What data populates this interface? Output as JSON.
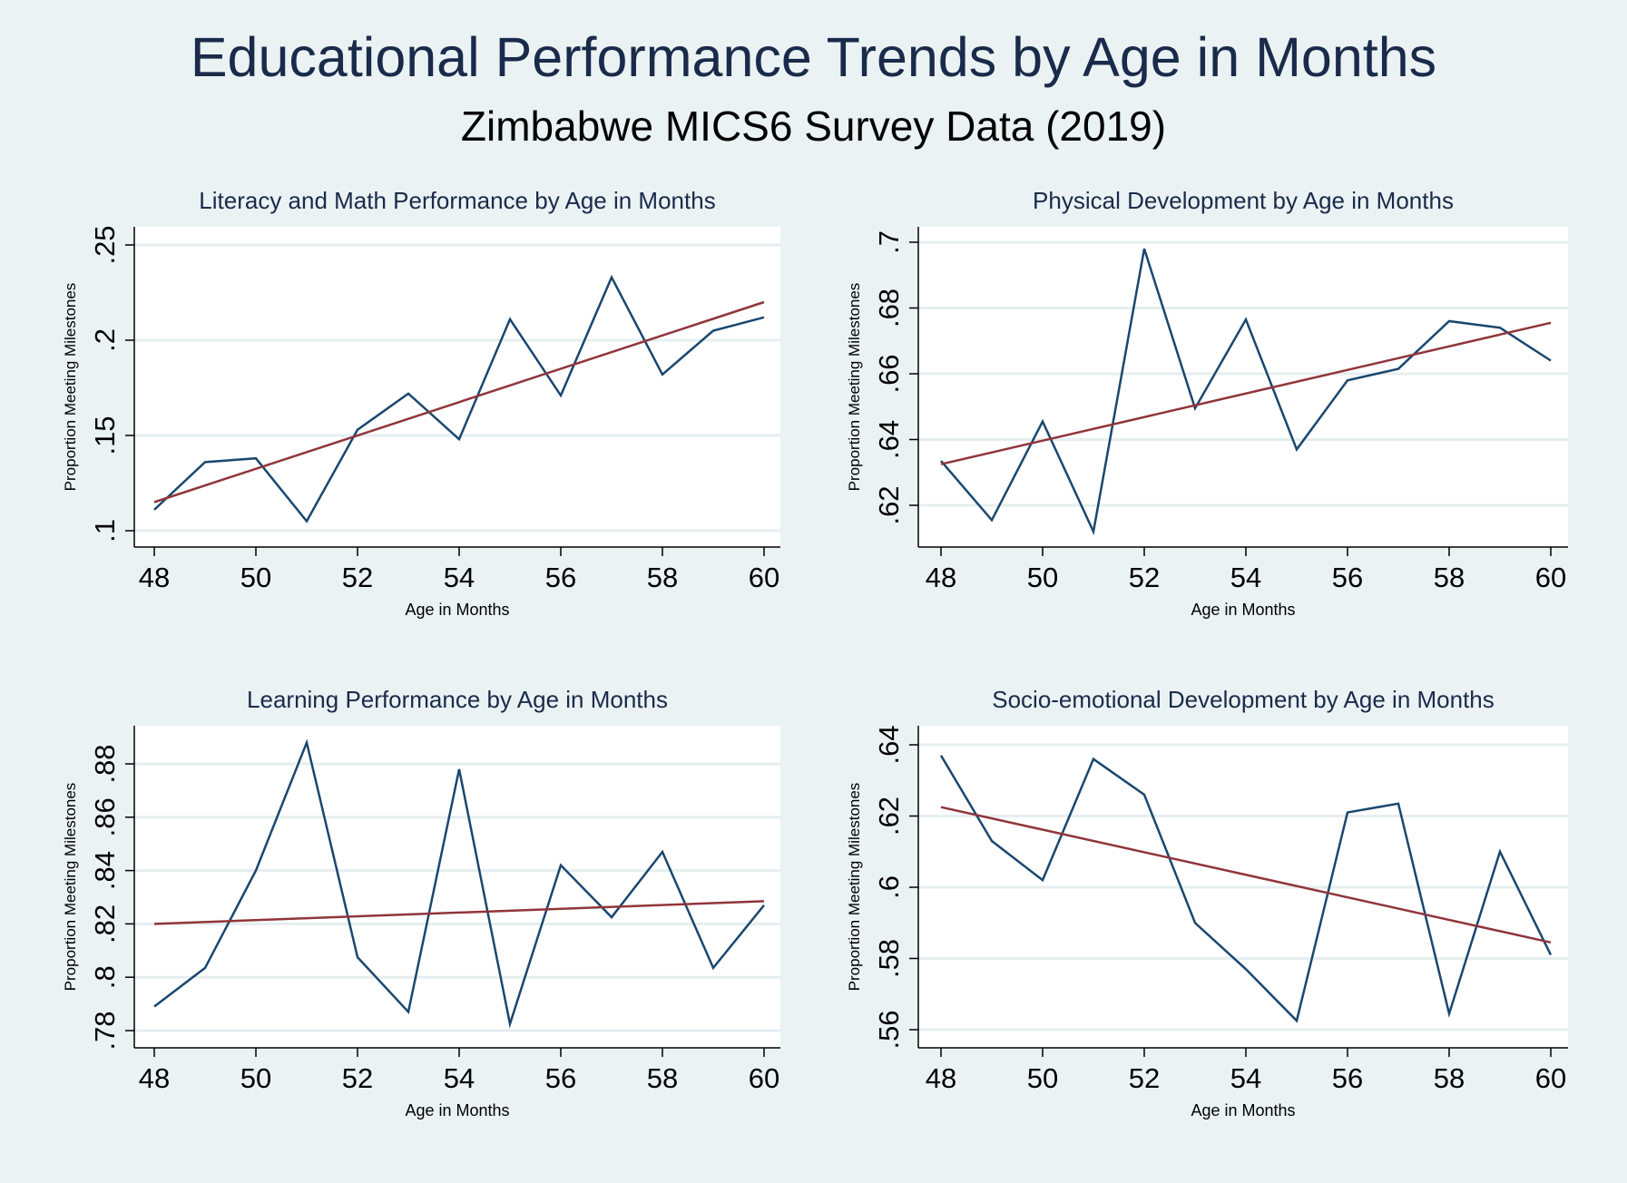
{
  "figure": {
    "title": "Educational Performance Trends by Age in Months",
    "subtitle": "Zimbabwe MICS6 Survey Data (2019)"
  },
  "colors": {
    "background": "#eaf2f3",
    "plot_background": "#ffffff",
    "gridline": "#e6eef0",
    "data_line": "#1a476f",
    "fit_line": "#90353b",
    "title_text": "#1a2a4a"
  },
  "chart_data": [
    {
      "type": "line",
      "title": "Literacy and Math Performance by Age in Months",
      "xlabel": "Age in Months",
      "ylabel": "Proportion Meeting Milestones",
      "x": [
        48,
        49,
        50,
        51,
        52,
        53,
        54,
        55,
        56,
        57,
        58,
        59,
        60
      ],
      "xlim": [
        48,
        60
      ],
      "xticks": [
        48,
        50,
        52,
        54,
        56,
        58,
        60
      ],
      "xtick_labels": [
        "48",
        "50",
        "52",
        "54",
        "56",
        "58",
        "60"
      ],
      "ylim": [
        0.1,
        0.25
      ],
      "yticks": [
        0.1,
        0.15,
        0.2,
        0.25
      ],
      "ytick_labels": [
        ".1",
        ".15",
        ".2",
        ".25"
      ],
      "grid": true,
      "series": [
        {
          "values": [
            0.111,
            0.136,
            0.138,
            0.105,
            0.153,
            0.172,
            0.148,
            0.211,
            0.171,
            0.233,
            0.182,
            0.205,
            0.212
          ]
        }
      ],
      "fit_line": {
        "x": [
          48,
          60
        ],
        "y": [
          0.115,
          0.22
        ]
      }
    },
    {
      "type": "line",
      "title": "Physical Development by Age in Months",
      "xlabel": "Age in Months",
      "ylabel": "Proportion Meeting Milestones",
      "x": [
        48,
        49,
        50,
        51,
        52,
        53,
        54,
        55,
        56,
        57,
        58,
        59,
        60
      ],
      "xlim": [
        48,
        60
      ],
      "xticks": [
        48,
        50,
        52,
        54,
        56,
        58,
        60
      ],
      "xtick_labels": [
        "48",
        "50",
        "52",
        "54",
        "56",
        "58",
        "60"
      ],
      "ylim": [
        0.62,
        0.7
      ],
      "yticks": [
        0.62,
        0.64,
        0.66,
        0.68,
        0.7
      ],
      "ytick_labels": [
        ".62",
        ".64",
        ".66",
        ".68",
        ".7"
      ],
      "grid": true,
      "series": [
        {
          "values": [
            0.6335,
            0.6155,
            0.6455,
            0.612,
            0.698,
            0.6495,
            0.6765,
            0.637,
            0.658,
            0.6615,
            0.676,
            0.674,
            0.664
          ]
        }
      ],
      "fit_line": {
        "x": [
          48,
          60
        ],
        "y": [
          0.6325,
          0.6755
        ]
      }
    },
    {
      "type": "line",
      "title": "Learning Performance by Age in Months",
      "xlabel": "Age in Months",
      "ylabel": "Proportion Meeting Milestones",
      "x": [
        48,
        49,
        50,
        51,
        52,
        53,
        54,
        55,
        56,
        57,
        58,
        59,
        60
      ],
      "xlim": [
        48,
        60
      ],
      "xticks": [
        48,
        50,
        52,
        54,
        56,
        58,
        60
      ],
      "xtick_labels": [
        "48",
        "50",
        "52",
        "54",
        "56",
        "58",
        "60"
      ],
      "ylim": [
        0.78,
        0.88
      ],
      "yticks": [
        0.78,
        0.8,
        0.82,
        0.84,
        0.86,
        0.88
      ],
      "ytick_labels": [
        ".78",
        ".8",
        ".82",
        ".84",
        ".86",
        ".88"
      ],
      "grid": true,
      "series": [
        {
          "values": [
            0.789,
            0.8035,
            0.84,
            0.888,
            0.8075,
            0.787,
            0.878,
            0.7825,
            0.842,
            0.8225,
            0.847,
            0.8035,
            0.827
          ]
        }
      ],
      "fit_line": {
        "x": [
          48,
          60
        ],
        "y": [
          0.82,
          0.8285
        ]
      }
    },
    {
      "type": "line",
      "title": "Socio-emotional Development by Age in Months",
      "xlabel": "Age in Months",
      "ylabel": "Proportion Meeting Milestones",
      "x": [
        48,
        49,
        50,
        51,
        52,
        53,
        54,
        55,
        56,
        57,
        58,
        59,
        60
      ],
      "xlim": [
        48,
        60
      ],
      "xticks": [
        48,
        50,
        52,
        54,
        56,
        58,
        60
      ],
      "xtick_labels": [
        "48",
        "50",
        "52",
        "54",
        "56",
        "58",
        "60"
      ],
      "ylim": [
        0.56,
        0.64
      ],
      "yticks": [
        0.56,
        0.58,
        0.6,
        0.62,
        0.64
      ],
      "ytick_labels": [
        ".56",
        ".58",
        ".6",
        ".62",
        ".64"
      ],
      "grid": true,
      "series": [
        {
          "values": [
            0.637,
            0.613,
            0.602,
            0.636,
            0.626,
            0.59,
            0.577,
            0.5625,
            0.621,
            0.6235,
            0.5645,
            0.61,
            0.581
          ]
        }
      ],
      "fit_line": {
        "x": [
          48,
          60
        ],
        "y": [
          0.6225,
          0.5845
        ]
      }
    }
  ]
}
